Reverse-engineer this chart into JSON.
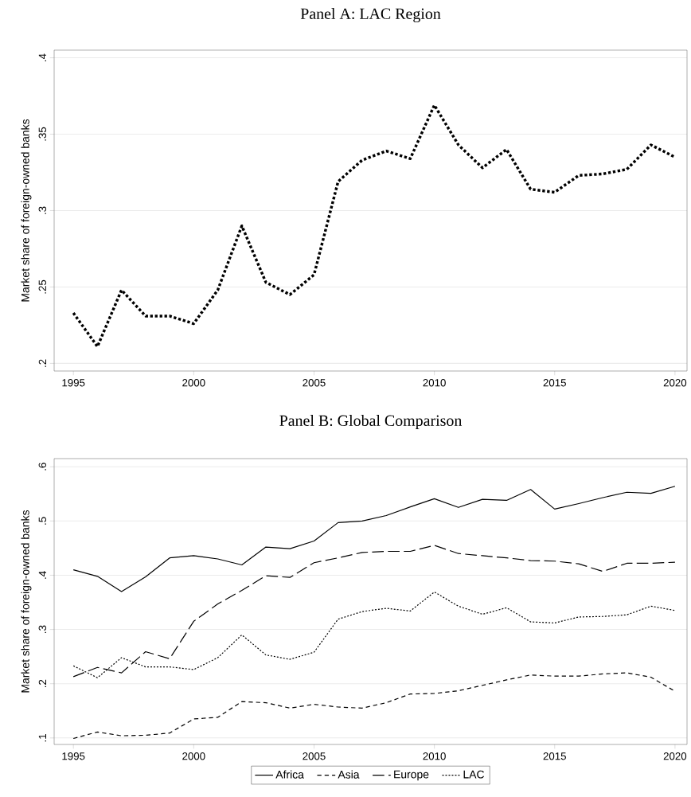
{
  "chart_data": [
    {
      "type": "line",
      "title": "Panel A: LAC Region",
      "ylabel": "Market share of foreign-owned banks",
      "x": [
        1995,
        1996,
        1997,
        1998,
        1999,
        2000,
        2001,
        2002,
        2003,
        2004,
        2005,
        2006,
        2007,
        2008,
        2009,
        2010,
        2011,
        2012,
        2013,
        2014,
        2015,
        2016,
        2017,
        2018,
        2019,
        2020
      ],
      "series": [
        {
          "color": "#000000",
          "line_style": "dotted",
          "values": [
            0.233,
            0.211,
            0.248,
            0.231,
            0.231,
            0.226,
            0.248,
            0.29,
            0.253,
            0.245,
            0.258,
            0.319,
            0.333,
            0.339,
            0.334,
            0.369,
            0.343,
            0.328,
            0.34,
            0.314,
            0.312,
            0.323,
            0.324,
            0.327,
            0.343,
            0.335
          ]
        }
      ],
      "xlim": [
        1994.2,
        2020.5
      ],
      "xticks": [
        1995,
        2000,
        2005,
        2010,
        2015,
        2020
      ],
      "ylim": [
        0.195,
        0.405
      ],
      "yticks": [
        {
          "value": 0.2,
          "label": ".2"
        },
        {
          "value": 0.25,
          "label": ".25"
        },
        {
          "value": 0.3,
          "label": ".3"
        },
        {
          "value": 0.35,
          "label": ".35"
        },
        {
          "value": 0.4,
          "label": ".4"
        }
      ],
      "grid": "y",
      "legend": false,
      "marker": "none"
    },
    {
      "type": "line",
      "title": "Panel B: Global Comparison",
      "ylabel": "Market share of foreign-owned banks",
      "x": [
        1995,
        1996,
        1997,
        1998,
        1999,
        2000,
        2001,
        2002,
        2003,
        2004,
        2005,
        2006,
        2007,
        2008,
        2009,
        2010,
        2011,
        2012,
        2013,
        2014,
        2015,
        2016,
        2017,
        2018,
        2019,
        2020
      ],
      "series": [
        {
          "name": "Africa",
          "color": "#000000",
          "line_style": "solid",
          "values": [
            0.41,
            0.398,
            0.37,
            0.397,
            0.432,
            0.436,
            0.43,
            0.419,
            0.452,
            0.449,
            0.463,
            0.497,
            0.5,
            0.51,
            0.526,
            0.541,
            0.525,
            0.54,
            0.538,
            0.558,
            0.522,
            0.532,
            0.543,
            0.553,
            0.551,
            0.564
          ]
        },
        {
          "name": "Asia",
          "color": "#000000",
          "line_style": "dashed",
          "values": [
            0.099,
            0.111,
            0.104,
            0.105,
            0.109,
            0.135,
            0.138,
            0.167,
            0.165,
            0.155,
            0.162,
            0.157,
            0.155,
            0.165,
            0.181,
            0.182,
            0.187,
            0.197,
            0.207,
            0.216,
            0.214,
            0.214,
            0.218,
            0.22,
            0.212,
            0.186
          ]
        },
        {
          "name": "Europe",
          "color": "#000000",
          "line_style": "longdash",
          "values": [
            0.213,
            0.23,
            0.22,
            0.259,
            0.246,
            0.315,
            0.347,
            0.372,
            0.399,
            0.396,
            0.423,
            0.432,
            0.442,
            0.444,
            0.444,
            0.455,
            0.44,
            0.436,
            0.432,
            0.427,
            0.426,
            0.421,
            0.407,
            0.422,
            0.422,
            0.424
          ]
        },
        {
          "name": "LAC",
          "color": "#000000",
          "line_style": "dotted",
          "values": [
            0.233,
            0.211,
            0.248,
            0.231,
            0.231,
            0.226,
            0.248,
            0.29,
            0.253,
            0.245,
            0.258,
            0.319,
            0.333,
            0.339,
            0.334,
            0.369,
            0.343,
            0.328,
            0.34,
            0.314,
            0.312,
            0.323,
            0.324,
            0.327,
            0.343,
            0.335
          ]
        }
      ],
      "xlim": [
        1994.2,
        2020.5
      ],
      "xticks": [
        1995,
        2000,
        2005,
        2010,
        2015,
        2020
      ],
      "ylim": [
        0.088,
        0.615
      ],
      "yticks": [
        {
          "value": 0.1,
          "label": ".1"
        },
        {
          "value": 0.2,
          "label": ".2"
        },
        {
          "value": 0.3,
          "label": ".3"
        },
        {
          "value": 0.4,
          "label": ".4"
        },
        {
          "value": 0.5,
          "label": ".5"
        },
        {
          "value": 0.6,
          "label": ".6"
        }
      ],
      "grid": "y",
      "legend": "bottom",
      "marker": "none"
    }
  ]
}
